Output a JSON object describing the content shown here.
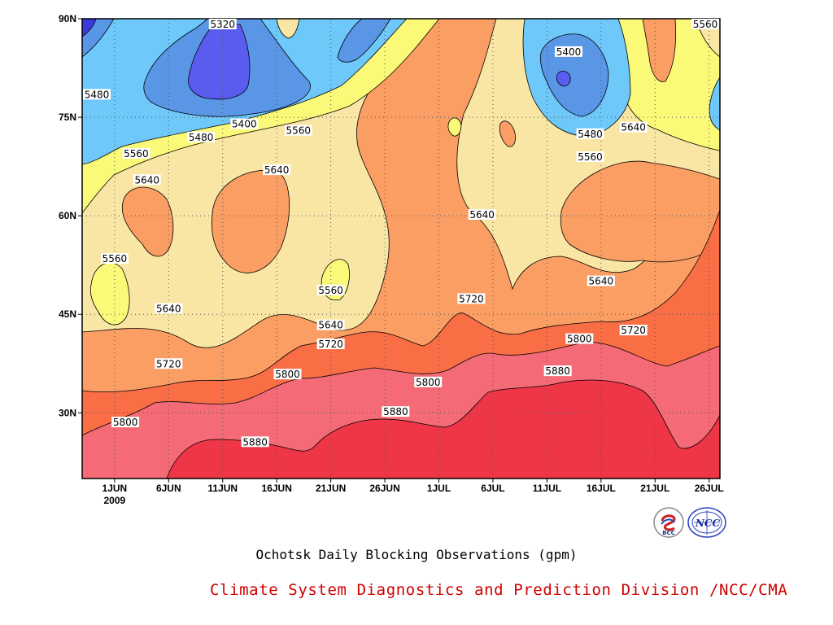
{
  "chart_data": {
    "type": "heatmap",
    "subtype": "filled-contour (time-latitude Hovmoller)",
    "title": "Ochotsk Daily Blocking Observations (gpm)",
    "variable_unit": "gpm",
    "x_axis": {
      "type": "date",
      "range": [
        "2009-05-29",
        "2009-07-27"
      ],
      "tick_labels": [
        "1JUN",
        "6JUN",
        "11JUN",
        "16JUN",
        "21JUN",
        "26JUN",
        "1JUL",
        "6JUL",
        "11JUL",
        "16JUL",
        "21JUL",
        "26JUL"
      ],
      "tick_dates": [
        "2009-06-01",
        "2009-06-06",
        "2009-06-11",
        "2009-06-16",
        "2009-06-21",
        "2009-06-26",
        "2009-07-01",
        "2009-07-06",
        "2009-07-11",
        "2009-07-16",
        "2009-07-21",
        "2009-07-26"
      ],
      "year_label": "2009"
    },
    "y_axis": {
      "range": [
        20,
        90
      ],
      "ticks": [
        30,
        45,
        60,
        75,
        90
      ],
      "tick_labels": [
        "30N",
        "45N",
        "60N",
        "75N",
        "90N"
      ]
    },
    "grid": "dotted",
    "contour_levels": [
      5320,
      5400,
      5480,
      5560,
      5640,
      5720,
      5800,
      5880
    ],
    "colors": {
      "lt5320": "#3a3ae0",
      "5320-5400": "#5a5cf0",
      "5400-5480": "#5a96e6",
      "5480-5560": "#6ec8fa",
      "5560-5640": "#fafa78",
      "5640-5720": "#fae6a4",
      "5720-5800": "#fa9e64",
      "5800-5880": "#fa6e46",
      "5880-5960": "#f46a76",
      "gt5960": "#ee3646"
    },
    "labeled_contours": [
      {
        "value": 5320,
        "date": "2009-06-11",
        "lat": 90
      },
      {
        "value": 5400,
        "date": "2009-07-13",
        "lat": 85
      },
      {
        "value": 5480,
        "date": "2009-05-30",
        "lat": 78.5
      },
      {
        "value": 5400,
        "date": "2009-06-13",
        "lat": 74
      },
      {
        "value": 5480,
        "date": "2009-06-09",
        "lat": 72
      },
      {
        "value": 5560,
        "date": "2009-06-18",
        "lat": 73
      },
      {
        "value": 5480,
        "date": "2009-07-15",
        "lat": 72.5
      },
      {
        "value": 5640,
        "date": "2009-07-19",
        "lat": 73.5
      },
      {
        "value": 5560,
        "date": "2009-07-15",
        "lat": 69
      },
      {
        "value": 5560,
        "date": "2009-06-03",
        "lat": 69.5
      },
      {
        "value": 5640,
        "date": "2009-06-04",
        "lat": 65.5
      },
      {
        "value": 5640,
        "date": "2009-06-16",
        "lat": 67
      },
      {
        "value": 5640,
        "date": "2009-07-05",
        "lat": 60.2
      },
      {
        "value": 5560,
        "date": "2009-06-01",
        "lat": 53.5
      },
      {
        "value": 5560,
        "date": "2009-06-21",
        "lat": 48.7
      },
      {
        "value": 5640,
        "date": "2009-07-16",
        "lat": 50.1
      },
      {
        "value": 5640,
        "date": "2009-06-06",
        "lat": 45.9
      },
      {
        "value": 5640,
        "date": "2009-06-21",
        "lat": 43.4
      },
      {
        "value": 5720,
        "date": "2009-07-04",
        "lat": 47.4
      },
      {
        "value": 5720,
        "date": "2009-07-19",
        "lat": 42.6
      },
      {
        "value": 5720,
        "date": "2009-06-06",
        "lat": 37.5
      },
      {
        "value": 5720,
        "date": "2009-06-21",
        "lat": 40.5
      },
      {
        "value": 5800,
        "date": "2009-07-14",
        "lat": 41.3
      },
      {
        "value": 5800,
        "date": "2009-06-17",
        "lat": 35.9
      },
      {
        "value": 5800,
        "date": "2009-06-30",
        "lat": 34.7
      },
      {
        "value": 5880,
        "date": "2009-07-12",
        "lat": 36.4
      },
      {
        "value": 5800,
        "date": "2009-06-02",
        "lat": 28.6
      },
      {
        "value": 5880,
        "date": "2009-06-27",
        "lat": 30.2
      },
      {
        "value": 5880,
        "date": "2009-06-14",
        "lat": 25.6
      },
      {
        "value": 5560,
        "date": "2009-07-27",
        "lat": 90
      }
    ]
  },
  "footer": {
    "title": "Ochotsk Daily Blocking Observations (gpm)",
    "credit": "Climate System Diagnostics and Prediction Division /NCC/CMA"
  },
  "logos": {
    "left": {
      "name": "bcc-logo",
      "text": "BCC"
    },
    "right": {
      "name": "ncc-logo",
      "text": "NCC"
    }
  }
}
